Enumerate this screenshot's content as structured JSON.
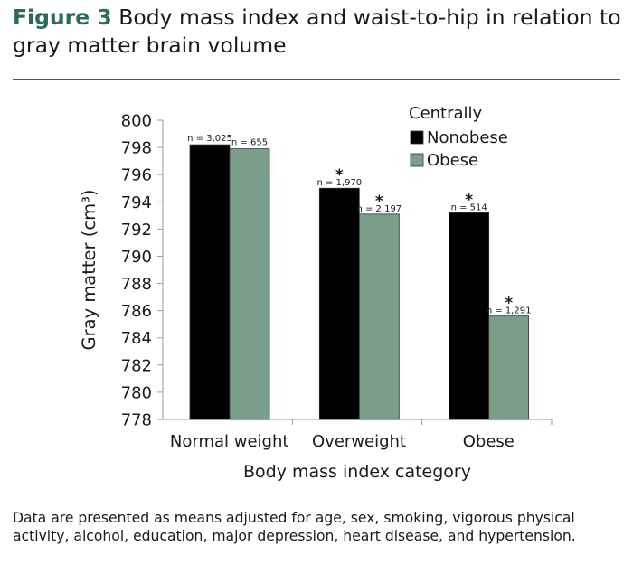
{
  "figure": {
    "label": "Figure 3",
    "title": "Body mass index and waist-to-hip in relation to gray matter brain volume",
    "caption": "Data are presented as means adjusted for age, sex, smoking, vigorous physical activity, alcohol, education, major depression, heart disease, and hypertension."
  },
  "chart_data": {
    "type": "bar",
    "categories": [
      "Normal weight",
      "Overweight",
      "Obese"
    ],
    "xlabel": "Body mass index category",
    "ylabel": "Gray matter (cm³)",
    "ylim": [
      778,
      800
    ],
    "yticks": [
      778,
      780,
      782,
      784,
      786,
      788,
      790,
      792,
      794,
      796,
      798,
      800
    ],
    "grid": false,
    "legend": {
      "title": "Centrally",
      "position": "top-right"
    },
    "series": [
      {
        "name": "Nonobese",
        "color": "#000000",
        "values": [
          798.2,
          795.0,
          793.2
        ],
        "n_labels": [
          "n = 3,025",
          "n = 1,970",
          "n = 514"
        ],
        "significant": [
          false,
          true,
          true
        ]
      },
      {
        "name": "Obese",
        "color": "#7a9e8a",
        "values": [
          797.9,
          793.1,
          785.6
        ],
        "n_labels": [
          "n = 655",
          "n = 2,197",
          "n = 1,291"
        ],
        "significant": [
          false,
          true,
          true
        ]
      }
    ],
    "significance_marker": "*"
  }
}
